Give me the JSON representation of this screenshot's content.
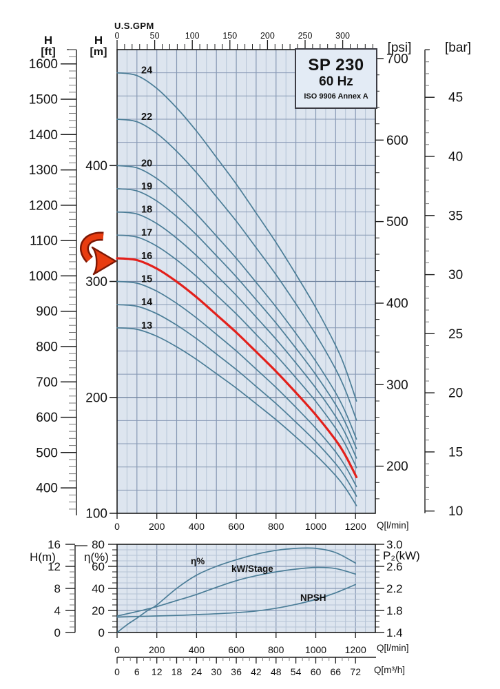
{
  "title_box": {
    "model": "SP 230",
    "frequency": "60 Hz",
    "standard": "ISO 9906 Annex A"
  },
  "axis_headers": {
    "h_ft": {
      "symbol": "H",
      "unit": "[ft]"
    },
    "h_m": {
      "symbol": "H",
      "unit": "[m]"
    },
    "gpm": "U.S.GPM",
    "psi": "[psi]",
    "bar": "[bar]",
    "q_lmin": "Q[l/min]",
    "q_m3h": "Q[m³/h]",
    "h_m_small": "H(m)",
    "eta": "η(%)",
    "p2": "P₂(kW)"
  },
  "colors": {
    "plot_bg": "#dde5ef",
    "grid_minor": "#b5c3d6",
    "grid_major": "#8799b4",
    "grid_major_dark": "#70849f",
    "curve": "#4b7d97",
    "highlight_curve": "#e3201b",
    "axis": "#1c1c1c",
    "minor_tick": "#777777",
    "text": "#111111",
    "arrow_fill": "#e83c10",
    "arrow_outline": "#7c1704",
    "box_bg": "#e3ebf5",
    "box_border": "#3c3c44"
  },
  "chart_data": [
    {
      "id": "head-curves",
      "type": "line",
      "title": "SP 230 60 Hz head curves per stage count",
      "x": {
        "unit": "Q[l/min]",
        "range": [
          0,
          1300
        ],
        "labeled_ticks": [
          0,
          200,
          400,
          600,
          800,
          1000,
          1200
        ],
        "minor_step": 50,
        "major_step": 100
      },
      "x_top": {
        "unit": "U.S.GPM",
        "labeled_ticks": [
          0,
          50,
          100,
          150,
          200,
          250,
          300
        ],
        "minor_step": 10,
        "max_minor": 340,
        "lmin_per_gpm": 3.7854
      },
      "y": {
        "unit": "H [m]",
        "range": [
          100,
          500
        ],
        "labeled_ticks": [
          100,
          200,
          300,
          400
        ],
        "grid_step": 20
      },
      "y_ft": {
        "unit": "H [ft]",
        "labeled_ticks": [
          400,
          500,
          600,
          700,
          800,
          900,
          1000,
          1100,
          1200,
          1300,
          1400,
          1500,
          1600
        ],
        "minor_step": 20,
        "minor_range": [
          340,
          1640
        ],
        "m_per_ft": 0.3048
      },
      "y_psi": {
        "unit": "[psi]",
        "labeled_ticks": [
          200,
          300,
          400,
          500,
          600,
          700
        ],
        "minor_step": 20,
        "minor_range": [
          160,
          700
        ],
        "m_per_psi": 0.70324
      },
      "y_bar": {
        "unit": "[bar]",
        "labeled_ticks": [
          10,
          15,
          20,
          25,
          30,
          35,
          40,
          45
        ],
        "minor_step": 1,
        "minor_range": [
          10,
          49
        ],
        "m_per_bar": 10.197
      },
      "stages": [
        13,
        14,
        15,
        16,
        17,
        18,
        19,
        20,
        22,
        24
      ],
      "highlighted_stage": 16,
      "head_per_stage_m": 20,
      "curve_end_q_lmin": 1205,
      "normalized_head_curve": [
        [
          0,
          1.0
        ],
        [
          100,
          0.995
        ],
        [
          200,
          0.972
        ],
        [
          300,
          0.937
        ],
        [
          400,
          0.895
        ],
        [
          500,
          0.848
        ],
        [
          600,
          0.8
        ],
        [
          700,
          0.748
        ],
        [
          800,
          0.695
        ],
        [
          900,
          0.638
        ],
        [
          1000,
          0.578
        ],
        [
          1100,
          0.51
        ],
        [
          1150,
          0.468
        ],
        [
          1205,
          0.41
        ]
      ],
      "annotation": {
        "type": "arrow",
        "target_stage": 16
      }
    },
    {
      "id": "performance",
      "type": "line",
      "title": "Efficiency, power per stage and NPSH",
      "x": {
        "unit": "Q[l/min]",
        "range": [
          0,
          1300
        ],
        "labeled_ticks": [
          0,
          200,
          400,
          600,
          800,
          1000,
          1200
        ],
        "minor_step": 50,
        "major_step": 200
      },
      "x2": {
        "unit": "Q[m³/h]",
        "labeled_ticks": [
          0,
          6,
          12,
          18,
          24,
          30,
          36,
          42,
          48,
          54,
          60,
          66,
          72
        ],
        "minor_step": 2
      },
      "y_eta": {
        "unit": "η(%)",
        "range": [
          0,
          80
        ],
        "labeled_ticks": [
          0,
          20,
          40,
          60,
          80
        ],
        "minor_step": 5
      },
      "y_h": {
        "unit": "H(m)",
        "range": [
          0,
          16
        ],
        "labeled_ticks": [
          0,
          4,
          8,
          12,
          16
        ],
        "minor_step": 1
      },
      "y_p2": {
        "unit": "P₂(kW)",
        "range": [
          1.4,
          3.0
        ],
        "labeled_ticks": [
          "1.4",
          "1.8",
          "2.2",
          "2.6",
          "3.0"
        ],
        "minor_step": 0.1
      },
      "series": [
        {
          "name": "η%",
          "key": "eta",
          "axis": "y_eta",
          "points": [
            [
              0,
              0
            ],
            [
              50,
              7
            ],
            [
              100,
              13
            ],
            [
              150,
              19.5
            ],
            [
              200,
              25
            ],
            [
              300,
              40
            ],
            [
              400,
              52
            ],
            [
              500,
              60
            ],
            [
              600,
              66
            ],
            [
              700,
              71
            ],
            [
              800,
              74.5
            ],
            [
              900,
              76.3
            ],
            [
              1000,
              76.3
            ],
            [
              1100,
              72.5
            ],
            [
              1200,
              63
            ]
          ]
        },
        {
          "name": "kW/Stage",
          "key": "kw-per-stage",
          "axis": "y_p2",
          "points": [
            [
              0,
              1.7
            ],
            [
              100,
              1.78
            ],
            [
              200,
              1.87
            ],
            [
              300,
              1.98
            ],
            [
              400,
              2.09
            ],
            [
              500,
              2.22
            ],
            [
              600,
              2.34
            ],
            [
              700,
              2.43
            ],
            [
              800,
              2.5
            ],
            [
              900,
              2.55
            ],
            [
              1000,
              2.58
            ],
            [
              1100,
              2.56
            ],
            [
              1200,
              2.46
            ]
          ]
        },
        {
          "name": "NPSH",
          "key": "npsh",
          "axis": "y_h",
          "points": [
            [
              0,
              2.8
            ],
            [
              100,
              2.9
            ],
            [
              200,
              3.0
            ],
            [
              300,
              3.1
            ],
            [
              400,
              3.25
            ],
            [
              500,
              3.4
            ],
            [
              600,
              3.6
            ],
            [
              700,
              3.9
            ],
            [
              800,
              4.4
            ],
            [
              900,
              5.1
            ],
            [
              1000,
              6.0
            ],
            [
              1100,
              7.2
            ],
            [
              1200,
              8.7
            ]
          ]
        }
      ]
    }
  ]
}
